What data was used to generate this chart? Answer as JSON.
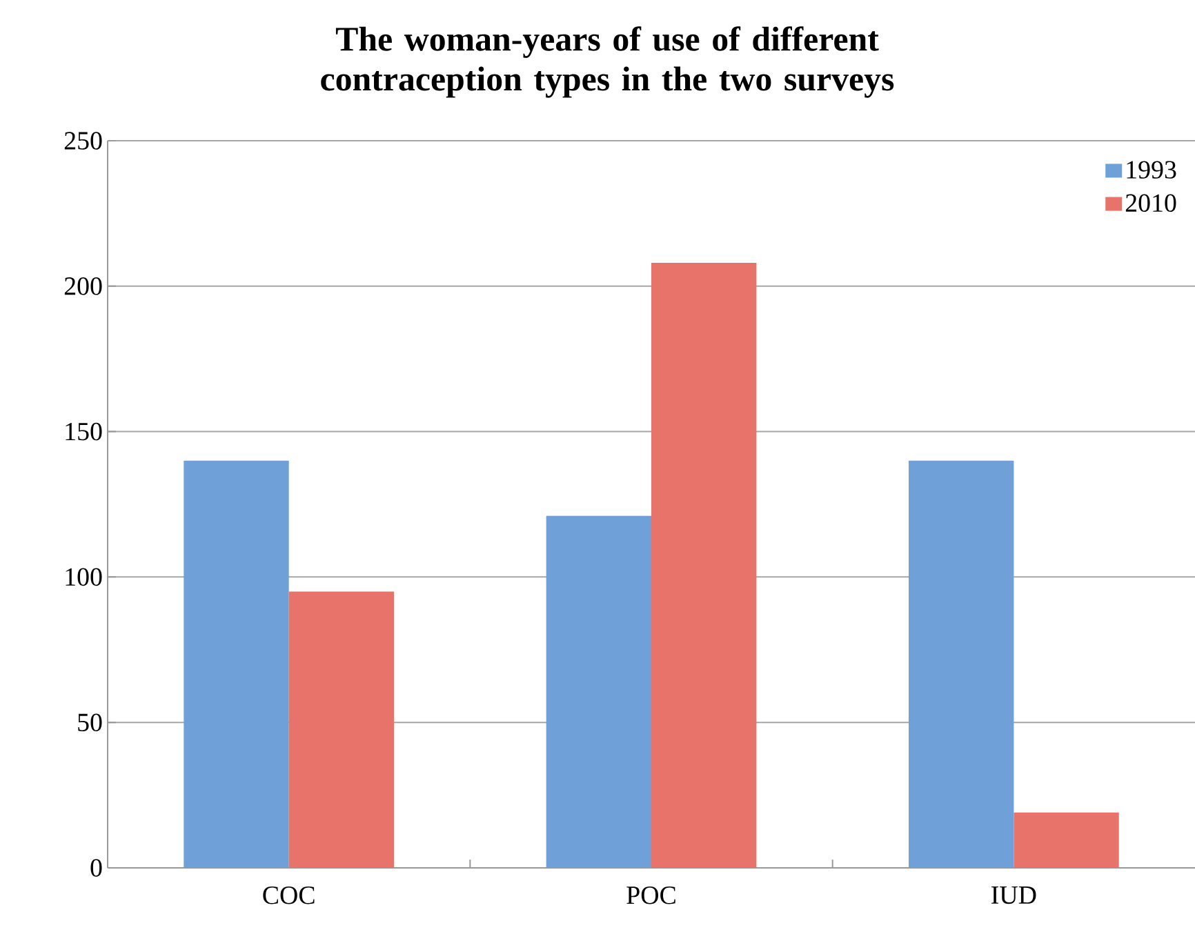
{
  "chart_data": {
    "type": "bar",
    "title": "The woman-years of use of different contraception types in the two surveys",
    "categories": [
      "COC",
      "POC",
      "IUD"
    ],
    "series": [
      {
        "name": "1993",
        "color": "#6fa0d8",
        "values": [
          140,
          121,
          140
        ]
      },
      {
        "name": "2010",
        "color": "#e8736b",
        "values": [
          95,
          208,
          19
        ]
      }
    ],
    "ylim": [
      0,
      250
    ],
    "yticks": [
      0,
      50,
      100,
      150,
      200,
      250
    ],
    "grid": "y",
    "legend": "top right"
  }
}
